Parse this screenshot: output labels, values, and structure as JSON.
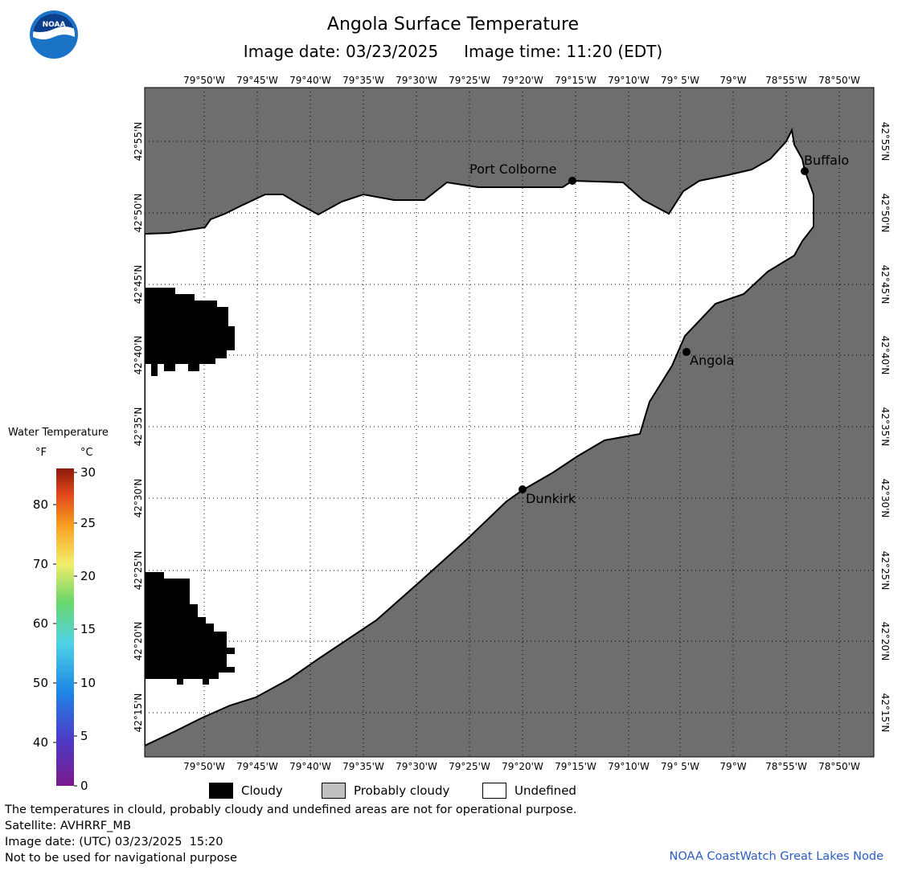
{
  "header": {
    "title": "Angola Surface Temperature",
    "image_date_label": "Image date: 03/23/2025",
    "image_time_label": "Image time: 11:20 (EDT)"
  },
  "logo": {
    "text": "NOAA",
    "icon": "noaa-logo-icon"
  },
  "axes": {
    "longitude_labels": [
      "79°50'W",
      "79°45'W",
      "79°40'W",
      "79°35'W",
      "79°30'W",
      "79°25'W",
      "79°20'W",
      "79°15'W",
      "79°10'W",
      "79° 5'W",
      "79°W",
      "78°55'W",
      "78°50'W"
    ],
    "latitude_labels": [
      "42°55'N",
      "42°50'N",
      "42°45'N",
      "42°40'N",
      "42°35'N",
      "42°30'N",
      "42°25'N",
      "42°20'N",
      "42°15'N"
    ]
  },
  "places": [
    {
      "name": "Port Colborne"
    },
    {
      "name": "Buffalo"
    },
    {
      "name": "Angola"
    },
    {
      "name": "Dunkirk"
    }
  ],
  "colorbar": {
    "title": "Water Temperature",
    "unit_f": "°F",
    "unit_c": "°C",
    "f_ticks": [
      "80",
      "70",
      "60",
      "50",
      "40"
    ],
    "c_ticks": [
      "30",
      "25",
      "20",
      "15",
      "10",
      "5",
      "0"
    ]
  },
  "legend": {
    "items": [
      {
        "label": "Cloudy",
        "color": "#000000"
      },
      {
        "label": "Probably cloudy",
        "color": "#c0c0c0"
      },
      {
        "label": "Undefined",
        "color": "#ffffff"
      }
    ]
  },
  "footer": {
    "disclaimer": "The temperatures in clould, probably cloudy and undefined areas are not for operational purpose.",
    "satellite": "Satellite: AVHRRF_MB",
    "utc_date": "Image date: (UTC) 03/23/2025  15:20",
    "navigation": "Not to be used for navigational purpose",
    "credit": "NOAA CoastWatch Great Lakes Node"
  },
  "colors": {
    "land": "#6e6e6e",
    "cloud": "#000000",
    "water_undefined": "#ffffff",
    "credit": "#2a5cc4"
  }
}
